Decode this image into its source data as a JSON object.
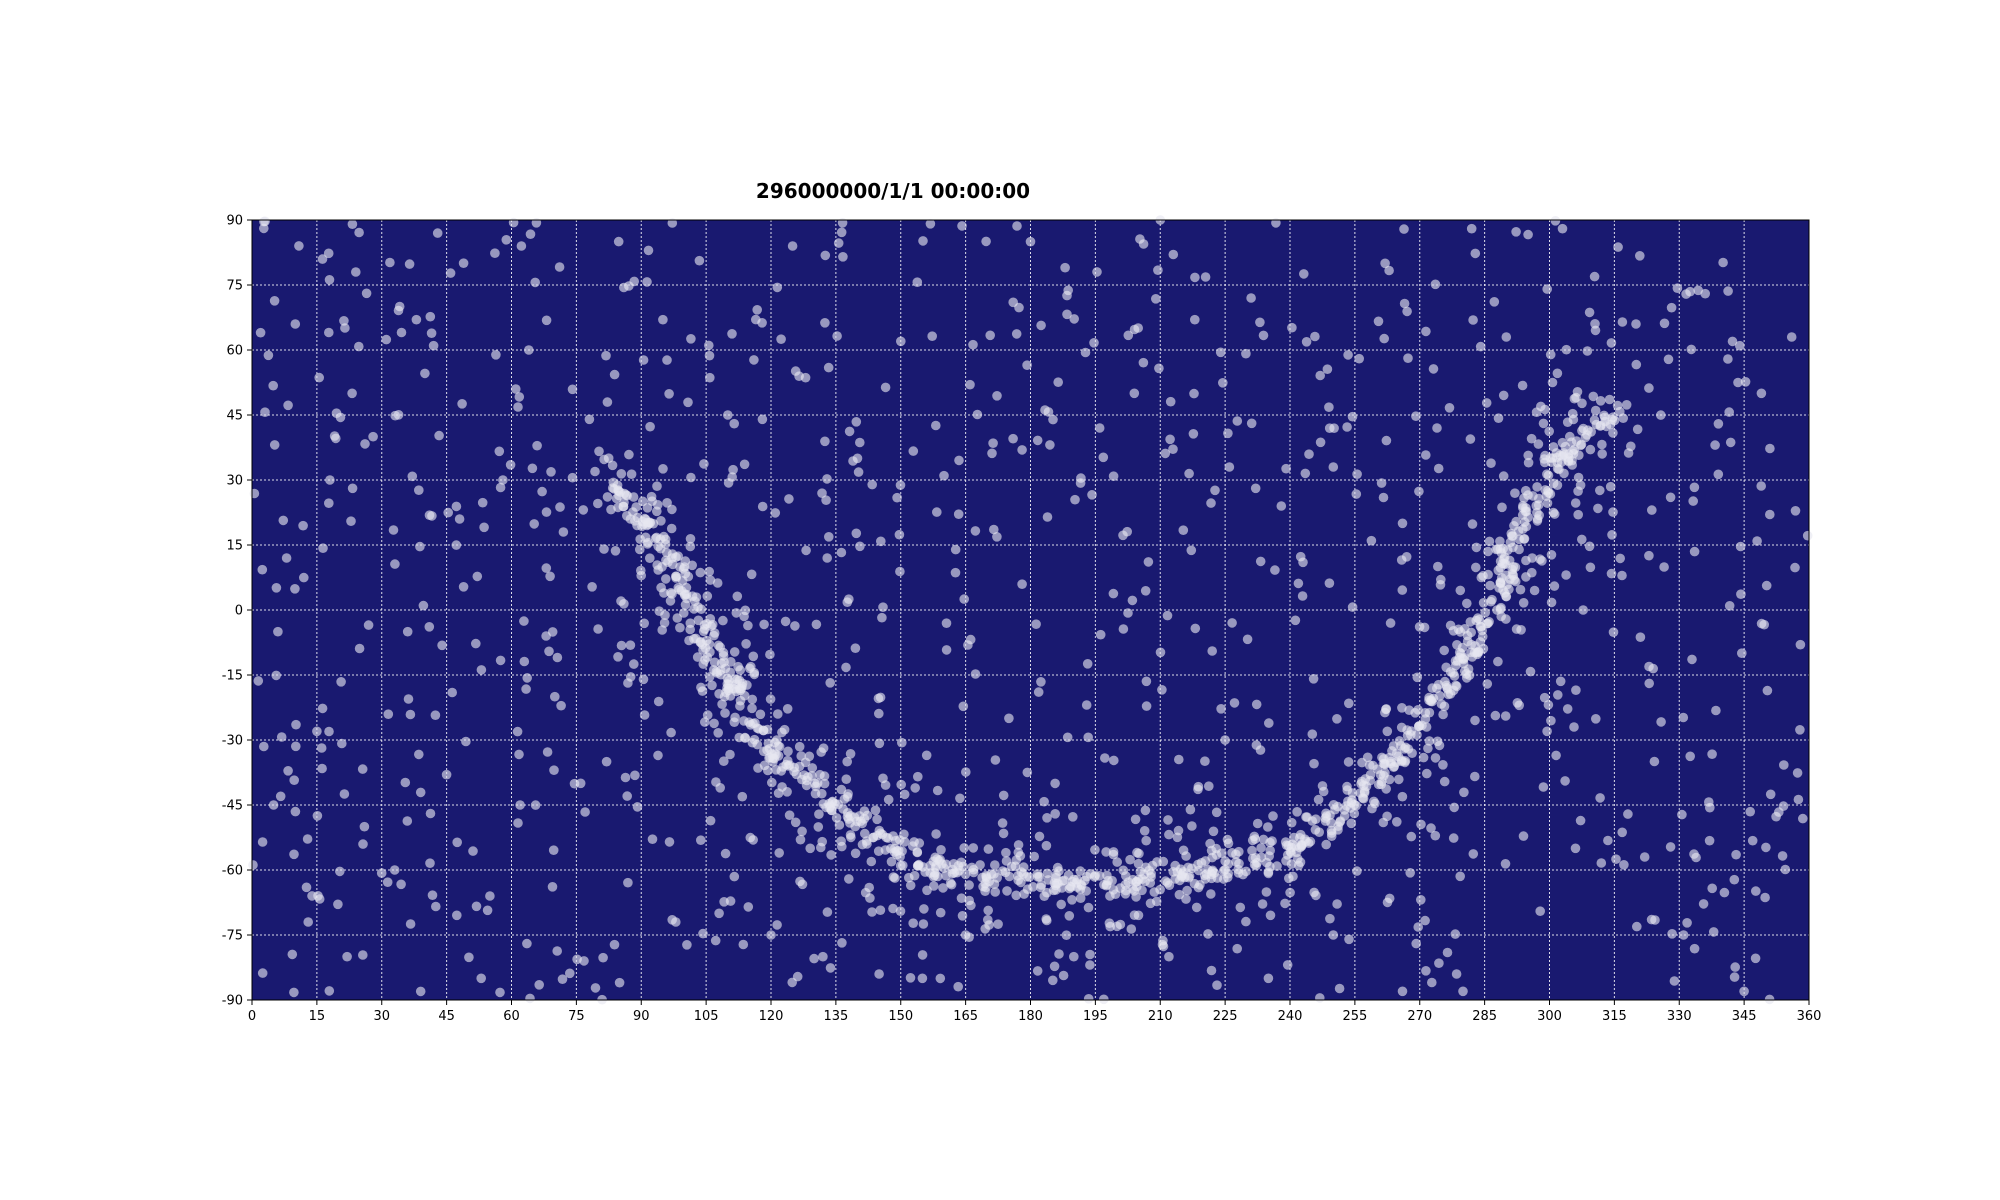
{
  "chart_data": {
    "type": "scatter",
    "title": "296000000/1/1 00:00:00",
    "xlabel": "",
    "ylabel": "",
    "xlim": [
      0,
      360
    ],
    "ylim": [
      -90,
      90
    ],
    "x_ticks": [
      0,
      15,
      30,
      45,
      60,
      75,
      90,
      105,
      120,
      135,
      150,
      165,
      180,
      195,
      210,
      225,
      240,
      255,
      270,
      285,
      300,
      315,
      330,
      345,
      360
    ],
    "y_ticks": [
      -90,
      -75,
      -60,
      -45,
      -30,
      -15,
      0,
      15,
      30,
      45,
      60,
      75,
      90
    ],
    "grid": true,
    "background_color": "#191970",
    "marker_color": "#e6e6f0",
    "grid_color": "#ffffff",
    "random_seed": 7,
    "band_path": [
      [
        84,
        29
      ],
      [
        90,
        22
      ],
      [
        95,
        14
      ],
      [
        100,
        4
      ],
      [
        105,
        -7
      ],
      [
        110,
        -16
      ],
      [
        115,
        -26
      ],
      [
        120,
        -33
      ],
      [
        130,
        -41
      ],
      [
        140,
        -49
      ],
      [
        150,
        -56
      ],
      [
        160,
        -60
      ],
      [
        170,
        -61
      ],
      [
        180,
        -62
      ],
      [
        190,
        -62
      ],
      [
        200,
        -63
      ],
      [
        210,
        -61
      ],
      [
        220,
        -60
      ],
      [
        230,
        -58
      ],
      [
        240,
        -55
      ],
      [
        250,
        -48
      ],
      [
        260,
        -39
      ],
      [
        270,
        -27
      ],
      [
        280,
        -11
      ],
      [
        285,
        -4
      ],
      [
        290,
        10
      ],
      [
        295,
        21
      ],
      [
        300,
        31
      ],
      [
        305,
        38
      ],
      [
        310,
        43
      ],
      [
        315,
        46
      ]
    ],
    "points": [
      [
        2,
        64
      ],
      [
        5,
        -45
      ],
      [
        8,
        12
      ],
      [
        10,
        66
      ],
      [
        13,
        -72
      ],
      [
        18,
        30
      ],
      [
        22,
        -80
      ],
      [
        24,
        78
      ],
      [
        28,
        40
      ],
      [
        33,
        -60
      ],
      [
        38,
        67
      ],
      [
        42,
        61
      ],
      [
        48,
        21
      ],
      [
        53,
        -85
      ],
      [
        58,
        30
      ],
      [
        61,
        51
      ],
      [
        64,
        60
      ],
      [
        68,
        -6
      ],
      [
        72,
        18
      ],
      [
        78,
        44
      ],
      [
        82,
        -35
      ],
      [
        95,
        67
      ],
      [
        110,
        45
      ],
      [
        118,
        44
      ],
      [
        125,
        84
      ],
      [
        133,
        12
      ],
      [
        140,
        35
      ],
      [
        150,
        62
      ],
      [
        160,
        31
      ],
      [
        166,
        52
      ],
      [
        176,
        71
      ],
      [
        180,
        85
      ],
      [
        188,
        79
      ],
      [
        196,
        42
      ],
      [
        204,
        50
      ],
      [
        210,
        90
      ],
      [
        218,
        67
      ],
      [
        226,
        33
      ],
      [
        231,
        72
      ],
      [
        238,
        24
      ],
      [
        243,
        11
      ],
      [
        250,
        33
      ],
      [
        256,
        58
      ],
      [
        262,
        80
      ],
      [
        266,
        20
      ],
      [
        274,
        42
      ],
      [
        282,
        88
      ],
      [
        290,
        63
      ],
      [
        296,
        12
      ],
      [
        303,
        88
      ],
      [
        320,
        66
      ],
      [
        328,
        26
      ],
      [
        336,
        73
      ],
      [
        344,
        61
      ],
      [
        349,
        50
      ],
      [
        356,
        63
      ],
      [
        358,
        -8
      ],
      [
        345,
        -88
      ],
      [
        331,
        -75
      ],
      [
        322,
        -57
      ],
      [
        306,
        -55
      ],
      [
        293,
        -22
      ],
      [
        280,
        -88
      ],
      [
        266,
        -88
      ],
      [
        250,
        -75
      ],
      [
        235,
        -85
      ],
      [
        225,
        -30
      ],
      [
        212,
        -80
      ],
      [
        200,
        -73
      ],
      [
        190,
        -80
      ],
      [
        175,
        -25
      ],
      [
        165,
        -75
      ],
      [
        155,
        -85
      ],
      [
        145,
        -84
      ],
      [
        132,
        -80
      ],
      [
        120,
        -75
      ],
      [
        108,
        -70
      ],
      [
        98,
        -72
      ],
      [
        85,
        -86
      ],
      [
        76,
        -40
      ],
      [
        70,
        -20
      ],
      [
        62,
        -45
      ],
      [
        55,
        -66
      ],
      [
        45,
        -38
      ],
      [
        36,
        -5
      ],
      [
        26,
        -50
      ],
      [
        15,
        -28
      ],
      [
        6,
        -5
      ]
    ]
  }
}
